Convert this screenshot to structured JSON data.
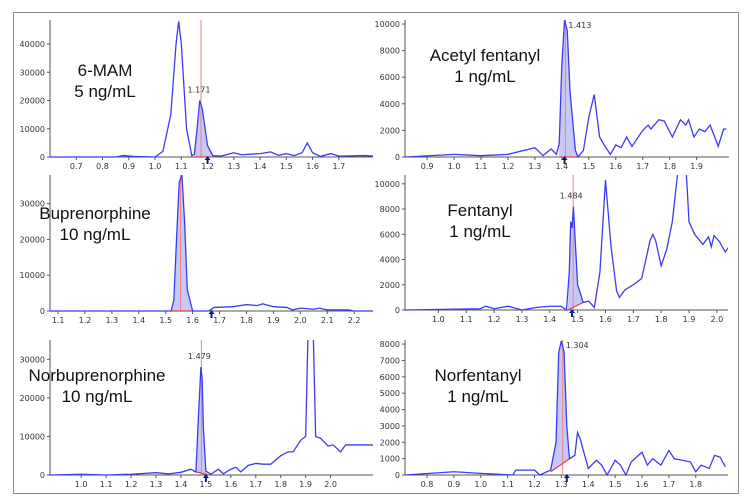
{
  "chart_data": [
    {
      "type": "line",
      "title": "6-MAM",
      "concentration": "5 ng/mL",
      "xlim": [
        0.6,
        1.83
      ],
      "ylim": [
        0,
        48500
      ],
      "xticks": [
        "0.7",
        "0.8",
        "0.9",
        "1.0",
        "1.1",
        "1.2",
        "1.3",
        "1.4",
        "1.5",
        "1.6",
        "1.7"
      ],
      "yticks": [
        "0",
        "10000",
        "20000",
        "30000",
        "40000"
      ],
      "rt_label": "1.171",
      "rt": 1.175,
      "integrated": [
        1.15,
        1.22
      ],
      "baseline_slope": [
        0,
        0
      ],
      "marker": 1.2,
      "trace": [
        [
          0.6,
          0
        ],
        [
          0.85,
          0
        ],
        [
          0.88,
          500
        ],
        [
          0.92,
          200
        ],
        [
          1.0,
          0
        ],
        [
          1.03,
          2000
        ],
        [
          1.06,
          15000
        ],
        [
          1.08,
          40000
        ],
        [
          1.09,
          48000
        ],
        [
          1.1,
          40000
        ],
        [
          1.12,
          10000
        ],
        [
          1.14,
          500
        ],
        [
          1.15,
          1000
        ],
        [
          1.16,
          10000
        ],
        [
          1.17,
          20000
        ],
        [
          1.18,
          17000
        ],
        [
          1.2,
          4000
        ],
        [
          1.22,
          500
        ],
        [
          1.25,
          300
        ],
        [
          1.3,
          1500
        ],
        [
          1.33,
          800
        ],
        [
          1.4,
          1200
        ],
        [
          1.44,
          1800
        ],
        [
          1.47,
          600
        ],
        [
          1.5,
          1200
        ],
        [
          1.53,
          500
        ],
        [
          1.56,
          1500
        ],
        [
          1.58,
          5000
        ],
        [
          1.6,
          1500
        ],
        [
          1.63,
          200
        ],
        [
          1.67,
          1200
        ],
        [
          1.7,
          300
        ],
        [
          1.8,
          500
        ],
        [
          1.83,
          300
        ]
      ]
    },
    {
      "type": "line",
      "title": "Acetyl fentanyl",
      "concentration": "1 ng/mL",
      "xlim": [
        0.818,
        2.02
      ],
      "ylim": [
        0,
        10300
      ],
      "xticks": [
        "0.9",
        "1.0",
        "1.1",
        "1.2",
        "1.3",
        "1.4",
        "1.5",
        "1.6",
        "1.7",
        "1.8",
        "1.9"
      ],
      "yticks": [
        "0",
        "2000",
        "4000",
        "6000",
        "8000",
        "10000"
      ],
      "rt_label": "1.413",
      "rt": 1.413,
      "integrated": [
        1.39,
        1.46
      ],
      "baseline_slope": [
        0,
        0
      ],
      "marker": 1.41,
      "trace": [
        [
          0.82,
          0
        ],
        [
          1.0,
          200
        ],
        [
          1.1,
          100
        ],
        [
          1.2,
          200
        ],
        [
          1.3,
          700
        ],
        [
          1.33,
          100
        ],
        [
          1.36,
          600
        ],
        [
          1.38,
          200
        ],
        [
          1.39,
          1000
        ],
        [
          1.4,
          7000
        ],
        [
          1.41,
          10300
        ],
        [
          1.42,
          9500
        ],
        [
          1.43,
          5000
        ],
        [
          1.45,
          500
        ],
        [
          1.46,
          0
        ],
        [
          1.48,
          500
        ],
        [
          1.5,
          3000
        ],
        [
          1.52,
          4700
        ],
        [
          1.54,
          1500
        ],
        [
          1.56,
          800
        ],
        [
          1.58,
          200
        ],
        [
          1.6,
          900
        ],
        [
          1.62,
          700
        ],
        [
          1.64,
          1500
        ],
        [
          1.66,
          800
        ],
        [
          1.7,
          2000
        ],
        [
          1.72,
          2400
        ],
        [
          1.73,
          2100
        ],
        [
          1.76,
          2800
        ],
        [
          1.78,
          2700
        ],
        [
          1.81,
          1500
        ],
        [
          1.84,
          2800
        ],
        [
          1.86,
          2400
        ],
        [
          1.87,
          2800
        ],
        [
          1.89,
          1500
        ],
        [
          1.91,
          2100
        ],
        [
          1.93,
          1900
        ],
        [
          1.95,
          2400
        ],
        [
          1.98,
          800
        ],
        [
          2.0,
          2100
        ],
        [
          2.01,
          2100
        ]
      ]
    },
    {
      "type": "line",
      "title": "Buprenorphine",
      "concentration": "10 ng/mL",
      "xlim": [
        1.07,
        2.27
      ],
      "ylim": [
        0,
        38000
      ],
      "xticks": [
        "1.1",
        "1.2",
        "1.3",
        "1.4",
        "1.5",
        "1.6",
        "1.7",
        "1.8",
        "1.9",
        "2.0",
        "2.1",
        "2.2"
      ],
      "yticks": [
        "0",
        "10000",
        "20000",
        "30000"
      ],
      "rt_label": "",
      "rt": 1.555,
      "integrated": [
        1.52,
        1.6
      ],
      "baseline_slope": [
        0,
        0
      ],
      "marker": 1.67,
      "trace": [
        [
          1.07,
          0
        ],
        [
          1.52,
          0
        ],
        [
          1.53,
          3000
        ],
        [
          1.54,
          20000
        ],
        [
          1.55,
          36000
        ],
        [
          1.56,
          38000
        ],
        [
          1.57,
          25000
        ],
        [
          1.58,
          6000
        ],
        [
          1.6,
          0
        ],
        [
          1.66,
          0
        ],
        [
          1.68,
          1000
        ],
        [
          1.75,
          1200
        ],
        [
          1.8,
          1800
        ],
        [
          1.84,
          1500
        ],
        [
          1.86,
          2000
        ],
        [
          1.9,
          1200
        ],
        [
          1.95,
          1000
        ],
        [
          1.97,
          300
        ],
        [
          2.0,
          800
        ],
        [
          2.05,
          500
        ],
        [
          2.07,
          800
        ],
        [
          2.1,
          300
        ],
        [
          2.18,
          300
        ],
        [
          2.2,
          0
        ],
        [
          2.27,
          0
        ]
      ]
    },
    {
      "type": "line",
      "title": "Fentanyl",
      "concentration": "1 ng/mL",
      "xlim": [
        0.88,
        2.04
      ],
      "ylim": [
        0,
        10700
      ],
      "xticks": [
        "1.0",
        "1.1",
        "1.2",
        "1.3",
        "1.4",
        "1.5",
        "1.6",
        "1.7",
        "1.8",
        "1.9",
        "2.0"
      ],
      "yticks": [
        "0",
        "2000",
        "4000",
        "6000",
        "8000",
        "10000"
      ],
      "rt_label": "1.484",
      "rt": 1.484,
      "integrated": [
        1.465,
        1.52
      ],
      "baseline_slope": [
        0,
        600
      ],
      "marker": 1.48,
      "trace": [
        [
          0.88,
          0
        ],
        [
          1.15,
          100
        ],
        [
          1.17,
          300
        ],
        [
          1.2,
          100
        ],
        [
          1.25,
          300
        ],
        [
          1.3,
          0
        ],
        [
          1.35,
          200
        ],
        [
          1.4,
          300
        ],
        [
          1.44,
          300
        ],
        [
          1.46,
          0
        ],
        [
          1.47,
          3000
        ],
        [
          1.475,
          7000
        ],
        [
          1.48,
          6500
        ],
        [
          1.485,
          8200
        ],
        [
          1.49,
          6000
        ],
        [
          1.5,
          2000
        ],
        [
          1.52,
          600
        ],
        [
          1.54,
          700
        ],
        [
          1.56,
          200
        ],
        [
          1.58,
          3000
        ],
        [
          1.6,
          10300
        ],
        [
          1.62,
          5000
        ],
        [
          1.64,
          1500
        ],
        [
          1.65,
          1000
        ],
        [
          1.67,
          1600
        ],
        [
          1.7,
          2000
        ],
        [
          1.73,
          2500
        ],
        [
          1.76,
          5500
        ],
        [
          1.77,
          6000
        ],
        [
          1.78,
          5500
        ],
        [
          1.8,
          3500
        ],
        [
          1.82,
          4800
        ],
        [
          1.84,
          7000
        ],
        [
          1.86,
          11000
        ],
        [
          1.88,
          12000
        ],
        [
          1.89,
          11000
        ],
        [
          1.9,
          7000
        ],
        [
          1.92,
          6000
        ],
        [
          1.95,
          5200
        ],
        [
          1.97,
          5800
        ],
        [
          1.98,
          5000
        ],
        [
          1.99,
          5900
        ],
        [
          2.01,
          5400
        ],
        [
          2.03,
          4600
        ],
        [
          2.05,
          5200
        ],
        [
          2.07,
          4600
        ],
        [
          2.08,
          3800
        ]
      ]
    },
    {
      "type": "line",
      "title": "Norbuprenorphine",
      "concentration": "10 ng/mL",
      "xlim": [
        0.875,
        2.17
      ],
      "ylim": [
        0,
        35000
      ],
      "xticks": [
        "1.0",
        "1.1",
        "1.2",
        "1.3",
        "1.4",
        "1.5",
        "1.6",
        "1.7",
        "1.8",
        "1.9",
        "2.0"
      ],
      "yticks": [
        "0",
        "10000",
        "20000",
        "30000"
      ],
      "rt_label": "1.479",
      "rt": 1.482,
      "integrated": [
        1.45,
        1.51
      ],
      "baseline_slope": [
        1000,
        0
      ],
      "marker": 1.5,
      "trace": [
        [
          0.875,
          0
        ],
        [
          1.0,
          200
        ],
        [
          1.1,
          0
        ],
        [
          1.2,
          200
        ],
        [
          1.3,
          600
        ],
        [
          1.35,
          300
        ],
        [
          1.4,
          700
        ],
        [
          1.44,
          1500
        ],
        [
          1.46,
          800
        ],
        [
          1.47,
          15000
        ],
        [
          1.48,
          28000
        ],
        [
          1.485,
          25000
        ],
        [
          1.49,
          12000
        ],
        [
          1.5,
          1000
        ],
        [
          1.52,
          200
        ],
        [
          1.55,
          1500
        ],
        [
          1.57,
          300
        ],
        [
          1.6,
          1500
        ],
        [
          1.62,
          2000
        ],
        [
          1.64,
          800
        ],
        [
          1.67,
          2500
        ],
        [
          1.7,
          3000
        ],
        [
          1.73,
          2800
        ],
        [
          1.76,
          2800
        ],
        [
          1.8,
          5000
        ],
        [
          1.83,
          6000
        ],
        [
          1.85,
          6000
        ],
        [
          1.88,
          9000
        ],
        [
          1.9,
          10000
        ],
        [
          1.91,
          38000
        ],
        [
          1.93,
          38000
        ],
        [
          1.94,
          10000
        ],
        [
          1.96,
          9500
        ],
        [
          1.99,
          7500
        ],
        [
          2.01,
          7800
        ],
        [
          2.04,
          6000
        ],
        [
          2.06,
          7800
        ],
        [
          2.1,
          7800
        ],
        [
          2.17,
          7800
        ]
      ]
    },
    {
      "type": "line",
      "title": "Norfentanyl",
      "concentration": "1 ng/mL",
      "xlim": [
        0.718,
        1.92
      ],
      "ylim": [
        0,
        8250
      ],
      "xticks": [
        "0.8",
        "0.9",
        "1.0",
        "1.1",
        "1.2",
        "1.3",
        "1.4",
        "1.5",
        "1.6",
        "1.7",
        "1.8"
      ],
      "yticks": [
        "0",
        "1000",
        "2000",
        "3000",
        "4000",
        "5000",
        "6000",
        "7000",
        "8000"
      ],
      "rt_label": "1.304",
      "rt": 1.305,
      "integrated": [
        1.26,
        1.34
      ],
      "baseline_slope": [
        200,
        1100
      ],
      "marker": 1.32,
      "trace": [
        [
          0.72,
          0
        ],
        [
          0.9,
          200
        ],
        [
          1.0,
          100
        ],
        [
          1.12,
          0
        ],
        [
          1.13,
          300
        ],
        [
          1.2,
          300
        ],
        [
          1.22,
          0
        ],
        [
          1.26,
          300
        ],
        [
          1.28,
          2000
        ],
        [
          1.29,
          7500
        ],
        [
          1.3,
          8200
        ],
        [
          1.31,
          7500
        ],
        [
          1.32,
          3000
        ],
        [
          1.33,
          1000
        ],
        [
          1.35,
          1200
        ],
        [
          1.36,
          2600
        ],
        [
          1.37,
          2200
        ],
        [
          1.4,
          400
        ],
        [
          1.43,
          900
        ],
        [
          1.45,
          600
        ],
        [
          1.47,
          0
        ],
        [
          1.5,
          900
        ],
        [
          1.52,
          600
        ],
        [
          1.54,
          0
        ],
        [
          1.56,
          800
        ],
        [
          1.6,
          1400
        ],
        [
          1.62,
          600
        ],
        [
          1.64,
          1000
        ],
        [
          1.67,
          600
        ],
        [
          1.7,
          1500
        ],
        [
          1.72,
          1000
        ],
        [
          1.78,
          800
        ],
        [
          1.8,
          200
        ],
        [
          1.82,
          600
        ],
        [
          1.85,
          400
        ],
        [
          1.87,
          1200
        ],
        [
          1.89,
          1100
        ],
        [
          1.91,
          500
        ]
      ]
    }
  ],
  "colors": {
    "trace": "#3b3bf0",
    "fill": "#c8c8f5",
    "rt_line": "#f08080",
    "baseline": "#e04040",
    "marker": "#00208a",
    "axis": "#555555"
  }
}
